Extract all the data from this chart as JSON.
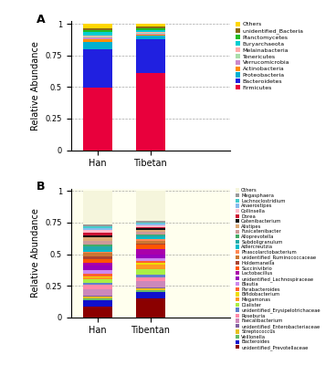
{
  "panel_A": {
    "categories": [
      "Han",
      "Tibetan"
    ],
    "species": [
      "Firmicutes",
      "Bacteroidetes",
      "Proteobacteria",
      "Actinobacteria",
      "Verrucomicrobia",
      "Tenericutes",
      "Melainabacteria",
      "Euryarchaeota",
      "Planctomycetes",
      "unidentified_Bacteria",
      "Others"
    ],
    "colors": [
      "#E8003C",
      "#2020E0",
      "#00B0D0",
      "#FF8C00",
      "#CC88CC",
      "#AADDAA",
      "#FFAAAA",
      "#00CED1",
      "#22BB22",
      "#8B6914",
      "#FFD700"
    ],
    "han_values": [
      0.493,
      0.305,
      0.062,
      0.018,
      0.012,
      0.008,
      0.01,
      0.025,
      0.02,
      0.015,
      0.032
    ],
    "tibetan_values": [
      0.61,
      0.265,
      0.03,
      0.01,
      0.008,
      0.005,
      0.005,
      0.02,
      0.015,
      0.012,
      0.02
    ]
  },
  "panel_B": {
    "categories": [
      "Han",
      "Tibentan"
    ],
    "species": [
      "unidentified_Prevotellaceae",
      "Bacteroides",
      "Veillonella",
      "Streptococcus",
      "unidentified_Enterobacteriaceae",
      "Faecalibacterium",
      "Roseburia",
      "unidentified_Erysipelotrichaceae",
      "Dialister",
      "Megamonas",
      "Bifidobacterium",
      "Parabacteroides",
      "Blautia",
      "unidentified_Lachnospiraceae",
      "Lactobacillus",
      "Succinivibrio",
      "Holdemanella",
      "unidentified_Ruminococcaceae",
      "Phascolarctobacterium",
      "Adlercreutzia",
      "Subdoligranulum",
      "Alloprevotella",
      "Fusicatenibacter",
      "Alistipes",
      "Catenibacterium",
      "Dorea",
      "Collinsella",
      "Anaerostipes",
      "Lachnoclostridium",
      "Megasphaera",
      "Others"
    ],
    "colors": [
      "#8B0000",
      "#1010CC",
      "#66BB66",
      "#E8C020",
      "#8060A0",
      "#CC88BB",
      "#FF88AA",
      "#6080CC",
      "#AAEE44",
      "#FF9922",
      "#EEDD00",
      "#FF6030",
      "#CC88EE",
      "#9900BB",
      "#AA00AA",
      "#FF5500",
      "#AA4433",
      "#CC7733",
      "#FF8855",
      "#00BBCC",
      "#22AAAA",
      "#44AA66",
      "#CC9999",
      "#DDAA77",
      "#111111",
      "#CC1133",
      "#FFBBCC",
      "#88BBEE",
      "#44CCCC",
      "#999999",
      "#F5F5DC"
    ],
    "han_values": [
      0.06,
      0.04,
      0.012,
      0.008,
      0.008,
      0.035,
      0.03,
      0.01,
      0.018,
      0.01,
      0.01,
      0.015,
      0.02,
      0.025,
      0.018,
      0.02,
      0.018,
      0.018,
      0.01,
      0.01,
      0.02,
      0.012,
      0.02,
      0.02,
      0.01,
      0.018,
      0.018,
      0.01,
      0.01,
      0.01,
      0.195
    ],
    "tibetan_values": [
      0.125,
      0.04,
      0.015,
      0.008,
      0.008,
      0.038,
      0.028,
      0.015,
      0.04,
      0.028,
      0.01,
      0.015,
      0.018,
      0.02,
      0.038,
      0.028,
      0.01,
      0.018,
      0.01,
      0.01,
      0.01,
      0.01,
      0.018,
      0.01,
      0.01,
      0.01,
      0.01,
      0.01,
      0.01,
      0.01,
      0.195
    ]
  },
  "bg_color_B": "#FFFFEE",
  "figsize": [
    3.68,
    4.0
  ],
  "dpi": 100
}
